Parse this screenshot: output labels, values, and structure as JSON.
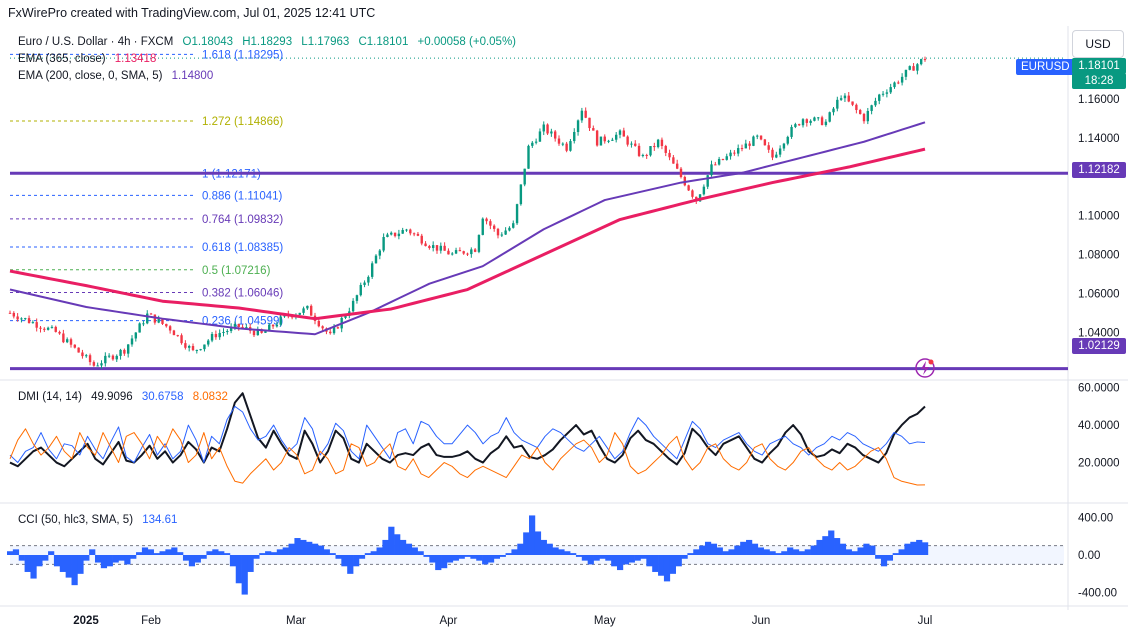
{
  "header": {
    "creator_line": "FxWirePro created with TradingView.com, Jul 01, 2025 12:41 UTC",
    "symbol_line": "Euro / U.S. Dollar · 4h · FXCM",
    "ohlc": {
      "o": "O1.18043",
      "h": "H1.18293",
      "l": "L1.17963",
      "c": "C1.18101",
      "chg": "+0.00058 (+0.05%)"
    }
  },
  "legends": {
    "ema365": {
      "label": "EMA (365, close)",
      "value": "1.13418"
    },
    "ema200": {
      "label": "EMA (200, close, 0, SMA, 5)",
      "value": "1.14800"
    },
    "dmi": {
      "label": "DMI (14, 14)",
      "adx": "49.9096",
      "plus": "30.6758",
      "minus": "8.0832"
    },
    "cci": {
      "label": "CCI (50, hlc3, SMA, 5)",
      "value": "134.61"
    }
  },
  "currency_button": "USD",
  "price_badges": {
    "symbol": "EURUSD",
    "last": "1.18101",
    "countdown": "18:28",
    "hline_upper": "1.12182",
    "hline_lower": "1.02129"
  },
  "colors": {
    "ema365": "#e91e63",
    "ema200": "#673ab7",
    "hline": "#673ab7",
    "up": "#089981",
    "down": "#f23645",
    "adx": "#131722",
    "plus_di": "#2962ff",
    "minus_di": "#ff6d00",
    "cci": "#2962ff",
    "fib_blue": "#2962ff",
    "fib_purple": "#673ab7",
    "fib_olive": "#b0b000",
    "fib_green": "#4caf50"
  },
  "chart_data": [
    {
      "type": "candlestick",
      "title": "Euro / U.S. Dollar · 4h · FXCM",
      "x_ticks": [
        "2025",
        "Feb",
        "Mar",
        "Apr",
        "May",
        "Jun",
        "Jul"
      ],
      "y_ticks": [
        "1.16000",
        "1.14000",
        "1.10000",
        "1.08000",
        "1.06000",
        "1.04000"
      ],
      "ylim": [
        1.0165,
        1.1965
      ],
      "price_path": [
        [
          0,
          1.05
        ],
        [
          6,
          1.04
        ],
        [
          11,
          1.023
        ],
        [
          15,
          1.031
        ],
        [
          18,
          1.049
        ],
        [
          21,
          1.042
        ],
        [
          24,
          1.03
        ],
        [
          27,
          1.039
        ],
        [
          30,
          1.043
        ],
        [
          33,
          1.039
        ],
        [
          36,
          1.048
        ],
        [
          39,
          1.052
        ],
        [
          42,
          1.038
        ],
        [
          45,
          1.055
        ],
        [
          47,
          1.07
        ],
        [
          49,
          1.088
        ],
        [
          52,
          1.093
        ],
        [
          55,
          1.085
        ],
        [
          58,
          1.08
        ],
        [
          61,
          1.083
        ],
        [
          62,
          1.1
        ],
        [
          64,
          1.09
        ],
        [
          66,
          1.095
        ],
        [
          68,
          1.135
        ],
        [
          70,
          1.145
        ],
        [
          73,
          1.135
        ],
        [
          75,
          1.155
        ],
        [
          77,
          1.138
        ],
        [
          80,
          1.142
        ],
        [
          83,
          1.13
        ],
        [
          85,
          1.138
        ],
        [
          88,
          1.12
        ],
        [
          90,
          1.108
        ],
        [
          92,
          1.125
        ],
        [
          94,
          1.13
        ],
        [
          96,
          1.135
        ],
        [
          98,
          1.14
        ],
        [
          100,
          1.13
        ],
        [
          102,
          1.142
        ],
        [
          104,
          1.15
        ],
        [
          107,
          1.148
        ],
        [
          109,
          1.162
        ],
        [
          112,
          1.15
        ],
        [
          114,
          1.162
        ],
        [
          116,
          1.168
        ],
        [
          118,
          1.175
        ],
        [
          120,
          1.181
        ]
      ],
      "ema365_path": [
        [
          0,
          1.0715
        ],
        [
          10,
          1.064
        ],
        [
          20,
          1.056
        ],
        [
          30,
          1.0525
        ],
        [
          40,
          1.047
        ],
        [
          50,
          1.052
        ],
        [
          60,
          1.062
        ],
        [
          70,
          1.08
        ],
        [
          80,
          1.098
        ],
        [
          90,
          1.108
        ],
        [
          100,
          1.117
        ],
        [
          110,
          1.125
        ],
        [
          120,
          1.1342
        ]
      ],
      "ema200_path": [
        [
          0,
          1.062
        ],
        [
          10,
          1.053
        ],
        [
          20,
          1.047
        ],
        [
          30,
          1.042
        ],
        [
          40,
          1.039
        ],
        [
          47,
          1.05
        ],
        [
          55,
          1.065
        ],
        [
          62,
          1.074
        ],
        [
          70,
          1.093
        ],
        [
          78,
          1.108
        ],
        [
          88,
          1.117
        ],
        [
          96,
          1.122
        ],
        [
          104,
          1.13
        ],
        [
          112,
          1.138
        ],
        [
          120,
          1.148
        ]
      ],
      "horizontal_levels": [
        1.12182,
        1.02129
      ],
      "fib_levels": [
        {
          "ratio": "1.618",
          "price": "1.18295",
          "color": "#2962ff"
        },
        {
          "ratio": "1.272",
          "price": "1.14866",
          "color": "#b0b000"
        },
        {
          "ratio": "1",
          "price": "1.12171",
          "color": "#2962ff"
        },
        {
          "ratio": "0.886",
          "price": "1.11041",
          "color": "#2962ff"
        },
        {
          "ratio": "0.764",
          "price": "1.09832",
          "color": "#673ab7"
        },
        {
          "ratio": "0.618",
          "price": "1.08385",
          "color": "#2962ff"
        },
        {
          "ratio": "0.5",
          "price": "1.07216",
          "color": "#4caf50"
        },
        {
          "ratio": "0.382",
          "price": "1.06046",
          "color": "#673ab7"
        },
        {
          "ratio": "0.236",
          "price": "1.04599",
          "color": "#2962ff"
        }
      ]
    },
    {
      "type": "line",
      "title": "DMI (14, 14)",
      "ylim": [
        0,
        63
      ],
      "y_ticks": [
        "60.0000",
        "40.0000",
        "20.0000"
      ],
      "series": [
        {
          "name": "ADX",
          "color": "#131722",
          "values": [
            20,
            18,
            22,
            26,
            28,
            24,
            20,
            18,
            22,
            26,
            30,
            22,
            19,
            25,
            31,
            21,
            20,
            24,
            29,
            22,
            26,
            20,
            24,
            31,
            27,
            20,
            28,
            26,
            38,
            52,
            57,
            45,
            33,
            28,
            37,
            30,
            24,
            22,
            37,
            30,
            20,
            26,
            37,
            33,
            22,
            20,
            30,
            26,
            22,
            20,
            24,
            25,
            24,
            28,
            30,
            24,
            23,
            23,
            24,
            26,
            22,
            20,
            25,
            28,
            34,
            28,
            29,
            23,
            22,
            24,
            27,
            32,
            36,
            40,
            35,
            37,
            29,
            22,
            20,
            24,
            33,
            37,
            32,
            30,
            26,
            22,
            19,
            25,
            38,
            34,
            28,
            24,
            30,
            32,
            34,
            28,
            22,
            20,
            25,
            29,
            36,
            40,
            35,
            26,
            23,
            24,
            27,
            25,
            30,
            28,
            24,
            22,
            20,
            25,
            35,
            40,
            44,
            46,
            49.9
          ]
        },
        {
          "name": "+DI",
          "color": "#2962ff",
          "values": [
            24,
            20,
            26,
            28,
            36,
            27,
            22,
            30,
            29,
            24,
            34,
            27,
            22,
            31,
            39,
            23,
            20,
            28,
            35,
            24,
            30,
            22,
            26,
            40,
            32,
            20,
            34,
            30,
            43,
            50,
            47,
            38,
            32,
            34,
            40,
            32,
            26,
            30,
            44,
            38,
            24,
            30,
            41,
            37,
            26,
            22,
            40,
            34,
            28,
            22,
            36,
            38,
            30,
            42,
            40,
            34,
            30,
            30,
            35,
            40,
            36,
            30,
            34,
            36,
            44,
            36,
            32,
            30,
            28,
            34,
            38,
            36,
            32,
            28,
            26,
            30,
            34,
            28,
            22,
            26,
            36,
            44,
            40,
            34,
            30,
            26,
            22,
            32,
            42,
            38,
            30,
            28,
            32,
            34,
            36,
            30,
            26,
            24,
            30,
            32,
            34,
            30,
            28,
            24,
            28,
            30,
            34,
            32,
            36,
            34,
            30,
            28,
            26,
            30,
            36,
            34,
            30,
            31,
            30.7
          ]
        },
        {
          "name": "-DI",
          "color": "#ff6d00",
          "values": [
            22,
            32,
            38,
            30,
            24,
            28,
            34,
            26,
            22,
            36,
            28,
            24,
            36,
            28,
            20,
            34,
            36,
            30,
            22,
            34,
            28,
            38,
            32,
            20,
            24,
            36,
            22,
            28,
            18,
            10,
            9,
            14,
            18,
            22,
            16,
            20,
            28,
            24,
            14,
            16,
            26,
            22,
            14,
            16,
            30,
            28,
            18,
            20,
            26,
            30,
            18,
            16,
            22,
            14,
            12,
            16,
            20,
            18,
            14,
            12,
            16,
            18,
            16,
            14,
            12,
            18,
            24,
            22,
            28,
            20,
            16,
            22,
            26,
            30,
            32,
            28,
            20,
            24,
            36,
            30,
            18,
            14,
            16,
            20,
            24,
            30,
            34,
            22,
            16,
            20,
            28,
            30,
            22,
            18,
            16,
            20,
            28,
            30,
            22,
            18,
            16,
            20,
            26,
            28,
            22,
            18,
            16,
            20,
            16,
            18,
            22,
            26,
            28,
            22,
            12,
            10,
            9,
            8,
            8.08
          ]
        }
      ]
    },
    {
      "type": "bar",
      "title": "CCI (50, hlc3, SMA, 5)",
      "ylim": [
        -520,
        520
      ],
      "y_ticks": [
        "400.00",
        "0.00",
        "-400.00"
      ],
      "bands": [
        100,
        -100
      ],
      "values": [
        40,
        60,
        -60,
        -180,
        -250,
        -120,
        -60,
        40,
        -120,
        -180,
        -240,
        -320,
        -200,
        -60,
        60,
        -80,
        -140,
        -120,
        -80,
        -60,
        -100,
        -40,
        30,
        80,
        60,
        20,
        40,
        60,
        80,
        30,
        -60,
        -120,
        -80,
        -40,
        40,
        60,
        40,
        20,
        -120,
        -300,
        -420,
        -180,
        -40,
        20,
        40,
        30,
        60,
        80,
        120,
        180,
        160,
        140,
        120,
        100,
        60,
        20,
        -40,
        -120,
        -200,
        -120,
        -40,
        20,
        40,
        80,
        160,
        300,
        220,
        160,
        120,
        80,
        40,
        -20,
        -80,
        -160,
        -140,
        -80,
        -60,
        -40,
        -20,
        -40,
        -60,
        -100,
        -80,
        -40,
        -20,
        20,
        60,
        120,
        240,
        420,
        250,
        160,
        120,
        80,
        60,
        40,
        20,
        -20,
        -60,
        -100,
        -60,
        -40,
        -60,
        -120,
        -160,
        -100,
        -80,
        -60,
        -40,
        -120,
        -180,
        -220,
        -280,
        -200,
        -120,
        -40,
        20,
        60,
        100,
        140,
        120,
        80,
        40,
        60,
        100,
        140,
        160,
        120,
        80,
        60,
        40,
        20,
        40,
        80,
        60,
        40,
        60,
        100,
        160,
        200,
        260,
        180,
        120,
        60,
        40,
        80,
        120,
        100,
        -40,
        -120,
        -60,
        20,
        60,
        120,
        140,
        160,
        134.61
      ]
    }
  ]
}
